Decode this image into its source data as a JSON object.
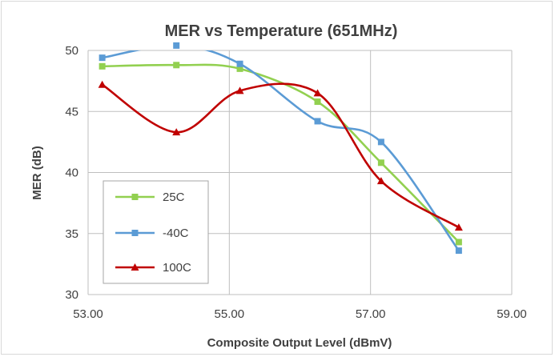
{
  "chart_data": {
    "type": "line",
    "title": "MER vs Temperature (651MHz)",
    "xlabel": "Composite Output Level (dBmV)",
    "ylabel": "MER (dB)",
    "xlim": [
      53,
      59
    ],
    "ylim": [
      30,
      50
    ],
    "x_ticks": [
      53,
      55,
      57,
      59
    ],
    "x_tick_labels": [
      "53.00",
      "55.00",
      "57.00",
      "59.00"
    ],
    "y_ticks": [
      30,
      35,
      40,
      45,
      50
    ],
    "y_tick_labels": [
      "30",
      "35",
      "40",
      "45",
      "50"
    ],
    "grid": true,
    "smoothed": true,
    "legend_position": "bottom-left",
    "series": [
      {
        "name": "25C",
        "color": "#92d050",
        "marker": "square",
        "points": [
          [
            53.2,
            48.7
          ],
          [
            54.25,
            48.8
          ],
          [
            55.15,
            48.5
          ],
          [
            56.25,
            45.8
          ],
          [
            57.15,
            40.8
          ],
          [
            58.25,
            34.3
          ]
        ]
      },
      {
        "name": "-40C",
        "color": "#5b9bd5",
        "marker": "square",
        "points": [
          [
            53.2,
            49.4
          ],
          [
            54.25,
            50.4
          ],
          [
            55.15,
            48.9
          ],
          [
            56.25,
            44.2
          ],
          [
            57.15,
            42.5
          ],
          [
            58.25,
            33.6
          ]
        ]
      },
      {
        "name": "100C",
        "color": "#c00000",
        "marker": "triangle",
        "points": [
          [
            53.2,
            47.2
          ],
          [
            54.25,
            43.3
          ],
          [
            55.15,
            46.7
          ],
          [
            56.25,
            46.5
          ],
          [
            57.15,
            39.3
          ],
          [
            58.25,
            35.5
          ]
        ]
      }
    ]
  }
}
